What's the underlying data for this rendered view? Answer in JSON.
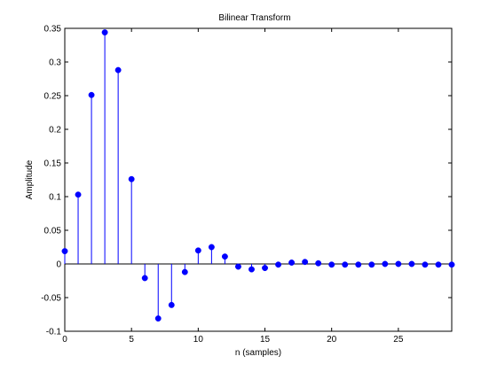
{
  "chart_data": {
    "type": "stem",
    "title": "Bilinear Transform",
    "xlabel": "n (samples)",
    "ylabel": "Amplitude",
    "xlim": [
      0,
      29
    ],
    "ylim": [
      -0.1,
      0.35
    ],
    "xticks": [
      0,
      5,
      10,
      15,
      20,
      25
    ],
    "yticks": [
      -0.1,
      -0.05,
      0,
      0.05,
      0.1,
      0.15,
      0.2,
      0.25,
      0.3,
      0.35
    ],
    "xtick_labels": [
      "0",
      "5",
      "10",
      "15",
      "20",
      "25"
    ],
    "ytick_labels": [
      "-0.1",
      "-0.05",
      "0",
      "0.05",
      "0.1",
      "0.15",
      "0.2",
      "0.25",
      "0.3",
      "0.35"
    ],
    "grid": false,
    "series": [
      {
        "color": "#0000ff",
        "x": [
          0,
          1,
          2,
          3,
          4,
          5,
          6,
          7,
          8,
          9,
          10,
          11,
          12,
          13,
          14,
          15,
          16,
          17,
          18,
          19,
          20,
          21,
          22,
          23,
          24,
          25,
          26,
          27,
          28,
          29
        ],
        "values": [
          0.019,
          0.103,
          0.251,
          0.344,
          0.288,
          0.126,
          -0.021,
          -0.081,
          -0.061,
          -0.012,
          0.02,
          0.025,
          0.011,
          -0.004,
          -0.008,
          -0.006,
          -0.001,
          0.002,
          0.003,
          0.001,
          -0.001,
          -0.001,
          -0.001,
          -0.001,
          0.0,
          0.0,
          0.0,
          -0.001,
          -0.001,
          -0.001
        ]
      }
    ]
  }
}
